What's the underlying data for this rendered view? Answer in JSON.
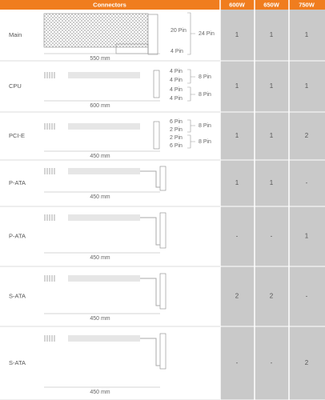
{
  "header": {
    "columns": [
      "Connectors",
      "600W",
      "650W",
      "750W"
    ]
  },
  "rows": [
    {
      "label": "Main",
      "length": "550 mm",
      "pins": [
        "20 Pin",
        "4 Pin"
      ],
      "brackets": [
        "24 Pin"
      ],
      "values": [
        "1",
        "1",
        "1"
      ]
    },
    {
      "label": "CPU",
      "length": "600 mm",
      "pins": [
        "4 Pin",
        "4 Pin",
        "4 Pin",
        "4 Pin"
      ],
      "brackets": [
        "8 Pin",
        "8 Pin"
      ],
      "values": [
        "1",
        "1",
        "1"
      ]
    },
    {
      "label": "PCI-E",
      "length": "450 mm",
      "pins": [
        "6 Pin",
        "2 Pin",
        "2 Pin",
        "6 Pin"
      ],
      "brackets": [
        "8 Pin",
        "8 Pin"
      ],
      "values": [
        "1",
        "1",
        "2"
      ]
    },
    {
      "label": "P-ATA",
      "length": "450 mm",
      "pins": [],
      "brackets": [],
      "values": [
        "1",
        "1",
        "-"
      ]
    },
    {
      "label": "P-ATA",
      "length": "450 mm",
      "pins": [],
      "brackets": [],
      "values": [
        "-",
        "-",
        "1"
      ]
    },
    {
      "label": "S-ATA",
      "length": "450 mm",
      "pins": [],
      "brackets": [],
      "values": [
        "2",
        "2",
        "-"
      ]
    },
    {
      "label": "S-ATA",
      "length": "450 mm",
      "pins": [],
      "brackets": [],
      "values": [
        "-",
        "-",
        "2"
      ]
    }
  ]
}
